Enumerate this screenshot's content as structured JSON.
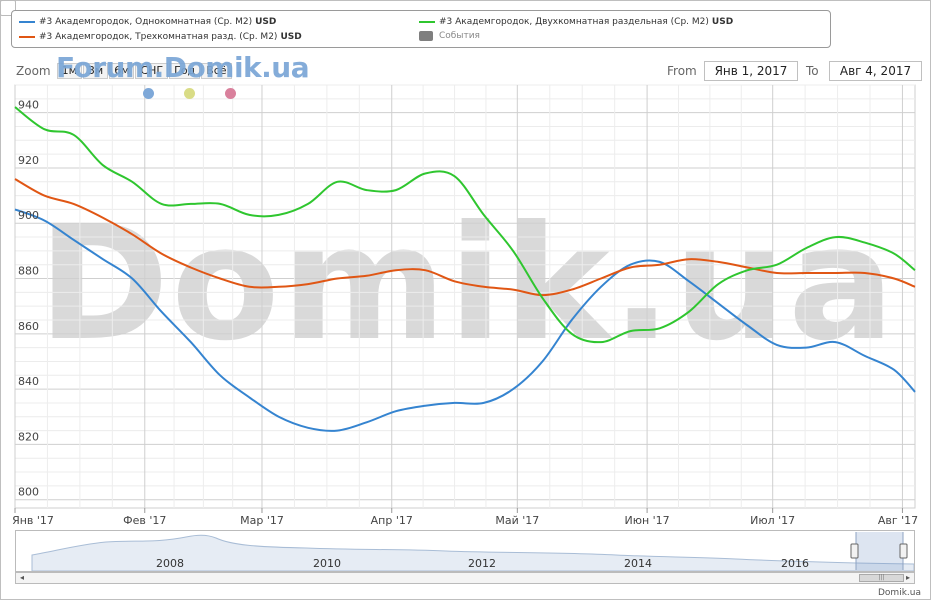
{
  "legend": {
    "items": [
      {
        "label": "#3 Академгородок, Однокомнатная (Ср. М2)",
        "unit": "USD",
        "color": "#3584d0"
      },
      {
        "label": "#3 Академгородок, Трехкомнатная разд. (Ср. М2)",
        "unit": "USD",
        "color": "#e05614"
      },
      {
        "label": "#3 Академгородок, Двухкомнатная раздельная (Ср. М2)",
        "unit": "USD",
        "color": "#2fc62f"
      },
      {
        "label": "События",
        "unit": "",
        "color": "#7f7f7f"
      }
    ]
  },
  "toolbar": {
    "zoom_label": "Zoom",
    "zoom_buttons": [
      "1м",
      "3м",
      "6м",
      "СНГ",
      "Год",
      "Всё"
    ],
    "from_label": "From",
    "from_value": "Янв 1, 2017",
    "to_label": "To",
    "to_value": "Авг 4, 2017"
  },
  "watermark_small": "Forum.Domik.ua",
  "watermark_big": "Domik.ua",
  "event_dot_colors": [
    "#7ea8d8",
    "#d9dc86",
    "#d9809c"
  ],
  "navigator": {
    "years": [
      "2008",
      "2010",
      "2012",
      "2014",
      "2016"
    ],
    "scroll_left": "◂",
    "scroll_right": "▸",
    "thumb_grip": "|||"
  },
  "credit": "Domik.ua",
  "chart_data": {
    "type": "line",
    "x_ticks": [
      "Янв '17",
      "Фев '17",
      "Мар '17",
      "Апр '17",
      "Май '17",
      "Июн '17",
      "Июл '17",
      "Авг '17"
    ],
    "y_ticks": [
      800,
      820,
      840,
      860,
      880,
      900,
      920,
      940
    ],
    "ylim": [
      797,
      950
    ],
    "xlim": [
      "2017-01-01",
      "2017-08-04"
    ],
    "grid": true,
    "legend_position": "top",
    "series": [
      {
        "name": "#3 Академгородок, Однокомнатная (Ср. М2)",
        "color": "#3584d0",
        "points": [
          [
            "2017-01-01",
            905
          ],
          [
            "2017-01-08",
            901
          ],
          [
            "2017-01-15",
            894
          ],
          [
            "2017-01-22",
            887
          ],
          [
            "2017-01-29",
            880
          ],
          [
            "2017-02-05",
            868
          ],
          [
            "2017-02-12",
            857
          ],
          [
            "2017-02-19",
            845
          ],
          [
            "2017-02-26",
            837
          ],
          [
            "2017-03-05",
            830
          ],
          [
            "2017-03-12",
            826
          ],
          [
            "2017-03-19",
            825
          ],
          [
            "2017-03-26",
            828
          ],
          [
            "2017-04-02",
            832
          ],
          [
            "2017-04-09",
            834
          ],
          [
            "2017-04-16",
            835
          ],
          [
            "2017-04-23",
            835
          ],
          [
            "2017-04-30",
            840
          ],
          [
            "2017-05-07",
            850
          ],
          [
            "2017-05-14",
            865
          ],
          [
            "2017-05-21",
            877
          ],
          [
            "2017-05-28",
            885
          ],
          [
            "2017-06-04",
            886
          ],
          [
            "2017-06-11",
            879
          ],
          [
            "2017-06-18",
            871
          ],
          [
            "2017-06-25",
            863
          ],
          [
            "2017-07-02",
            856
          ],
          [
            "2017-07-09",
            855
          ],
          [
            "2017-07-16",
            857
          ],
          [
            "2017-07-23",
            852
          ],
          [
            "2017-07-30",
            847
          ],
          [
            "2017-08-04",
            839
          ]
        ]
      },
      {
        "name": "#3 Академгородок, Трехкомнатная разд. (Ср. М2)",
        "color": "#e05614",
        "points": [
          [
            "2017-01-01",
            916
          ],
          [
            "2017-01-08",
            910
          ],
          [
            "2017-01-15",
            907
          ],
          [
            "2017-01-22",
            902
          ],
          [
            "2017-01-29",
            896
          ],
          [
            "2017-02-05",
            889
          ],
          [
            "2017-02-12",
            884
          ],
          [
            "2017-02-19",
            880
          ],
          [
            "2017-02-26",
            877
          ],
          [
            "2017-03-05",
            877
          ],
          [
            "2017-03-12",
            878
          ],
          [
            "2017-03-19",
            880
          ],
          [
            "2017-03-26",
            881
          ],
          [
            "2017-04-02",
            883
          ],
          [
            "2017-04-09",
            883
          ],
          [
            "2017-04-16",
            879
          ],
          [
            "2017-04-23",
            877
          ],
          [
            "2017-04-30",
            876
          ],
          [
            "2017-05-07",
            874
          ],
          [
            "2017-05-14",
            876
          ],
          [
            "2017-05-21",
            880
          ],
          [
            "2017-05-28",
            884
          ],
          [
            "2017-06-04",
            885
          ],
          [
            "2017-06-11",
            887
          ],
          [
            "2017-06-18",
            886
          ],
          [
            "2017-06-25",
            884
          ],
          [
            "2017-07-02",
            882
          ],
          [
            "2017-07-09",
            882
          ],
          [
            "2017-07-16",
            882
          ],
          [
            "2017-07-23",
            882
          ],
          [
            "2017-07-30",
            880
          ],
          [
            "2017-08-04",
            877
          ]
        ]
      },
      {
        "name": "#3 Академгородок, Двухкомнатная раздельная (Ср. М2)",
        "color": "#2fc62f",
        "points": [
          [
            "2017-01-01",
            942
          ],
          [
            "2017-01-08",
            934
          ],
          [
            "2017-01-15",
            932
          ],
          [
            "2017-01-22",
            921
          ],
          [
            "2017-01-29",
            915
          ],
          [
            "2017-02-05",
            907
          ],
          [
            "2017-02-12",
            907
          ],
          [
            "2017-02-19",
            907
          ],
          [
            "2017-02-26",
            903
          ],
          [
            "2017-03-05",
            903
          ],
          [
            "2017-03-12",
            907
          ],
          [
            "2017-03-19",
            915
          ],
          [
            "2017-03-26",
            912
          ],
          [
            "2017-04-02",
            912
          ],
          [
            "2017-04-09",
            918
          ],
          [
            "2017-04-16",
            917
          ],
          [
            "2017-04-23",
            903
          ],
          [
            "2017-04-30",
            890
          ],
          [
            "2017-05-07",
            873
          ],
          [
            "2017-05-14",
            860
          ],
          [
            "2017-05-21",
            857
          ],
          [
            "2017-05-28",
            861
          ],
          [
            "2017-06-04",
            862
          ],
          [
            "2017-06-11",
            868
          ],
          [
            "2017-06-18",
            878
          ],
          [
            "2017-06-25",
            883
          ],
          [
            "2017-07-02",
            885
          ],
          [
            "2017-07-09",
            891
          ],
          [
            "2017-07-16",
            895
          ],
          [
            "2017-07-23",
            893
          ],
          [
            "2017-07-30",
            889
          ],
          [
            "2017-08-04",
            883
          ]
        ]
      }
    ]
  }
}
